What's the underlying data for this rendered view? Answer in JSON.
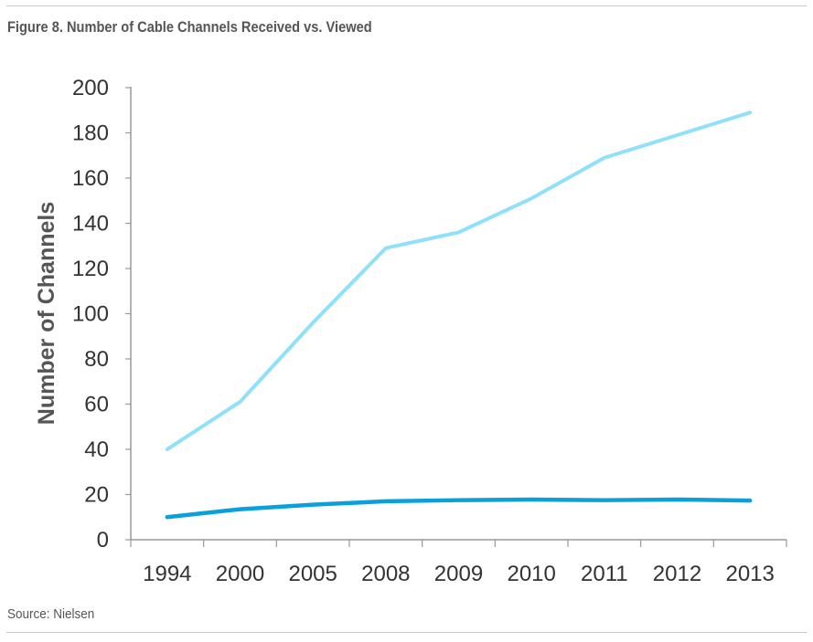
{
  "figure_title": "Figure 8. Number of Cable Channels Received vs. Viewed",
  "source": "Source: Nielsen",
  "chart_data": {
    "type": "line",
    "title": "",
    "xlabel": "",
    "ylabel": "Number of Channels",
    "categories": [
      "1994",
      "2000",
      "2005",
      "2008",
      "2009",
      "2010",
      "2011",
      "2012",
      "2013"
    ],
    "ylim": [
      0,
      200
    ],
    "yticks": [
      0,
      20,
      40,
      60,
      80,
      100,
      120,
      140,
      160,
      180,
      200
    ],
    "grid": false,
    "legend": "none",
    "series": [
      {
        "color": "#8ee0fb",
        "values": [
          40,
          61,
          96,
          129,
          136,
          151,
          169,
          179,
          189
        ]
      },
      {
        "color": "#0aa0dc",
        "values": [
          10,
          13.5,
          15.5,
          17,
          17.5,
          17.8,
          17.5,
          17.8,
          17.3
        ]
      }
    ]
  }
}
